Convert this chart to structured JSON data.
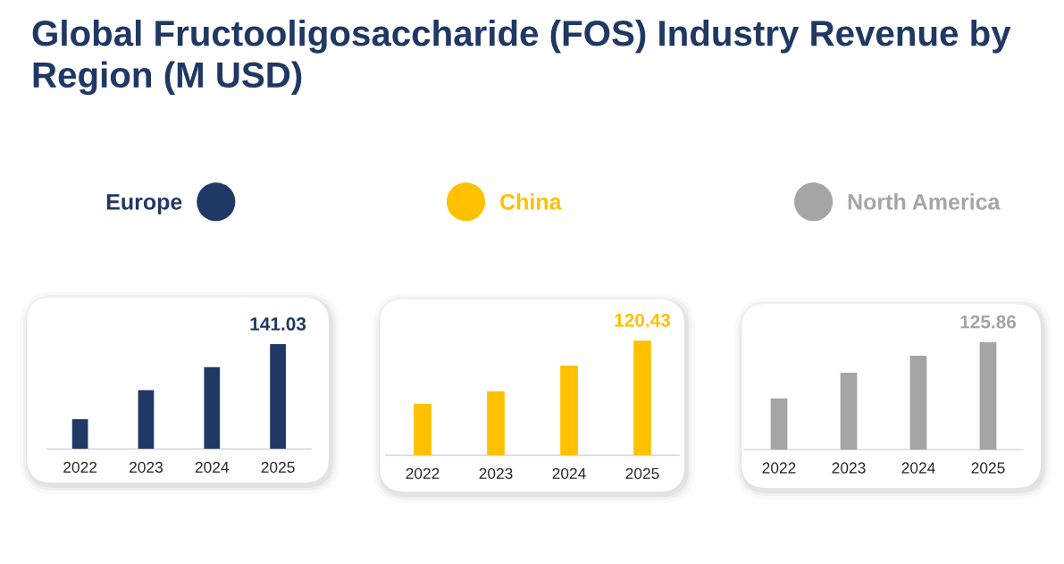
{
  "chart_data": [
    {
      "type": "bar",
      "title": "Global Fructooligosaccharide (FOS) Industry Revenue by Region (M USD)",
      "categories": [
        "2022",
        "2023",
        "2024",
        "2025"
      ],
      "series": [
        {
          "name": "Europe",
          "color": "#1f3864",
          "values": [
            40,
            79,
            110,
            141.03
          ],
          "value_labels": [
            null,
            null,
            null,
            "141.03"
          ]
        }
      ],
      "legend": "top",
      "tick_labels": "x"
    },
    {
      "type": "bar",
      "categories": [
        "2022",
        "2023",
        "2024",
        "2025"
      ],
      "series": [
        {
          "name": "China",
          "color": "#ffc000",
          "values": [
            54,
            67,
            94,
            120.43
          ],
          "value_labels": [
            null,
            null,
            null,
            "120.43"
          ]
        }
      ],
      "legend": "top",
      "tick_labels": "x"
    },
    {
      "type": "bar",
      "categories": [
        "2022",
        "2023",
        "2024",
        "2025"
      ],
      "series": [
        {
          "name": "North America",
          "color": "#a5a5a5",
          "values": [
            60,
            90,
            110,
            125.86
          ],
          "value_labels": [
            null,
            null,
            null,
            "125.86"
          ]
        }
      ],
      "legend": "top",
      "tick_labels": "x"
    }
  ]
}
